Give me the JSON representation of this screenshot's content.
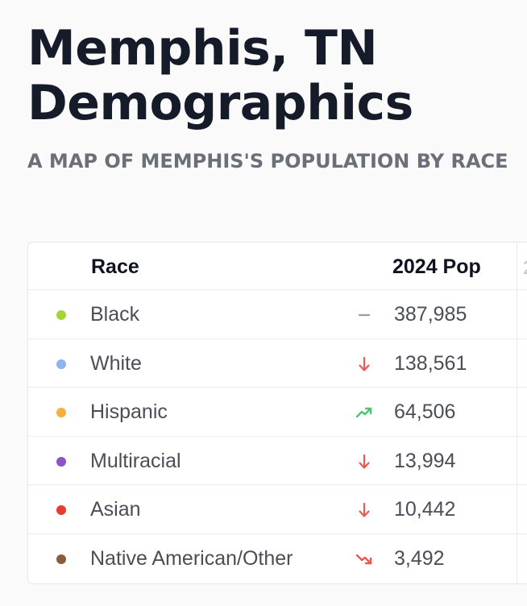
{
  "header": {
    "title": "Memphis, TN Demographics",
    "subtitle": "A map of Memphis's population by race"
  },
  "table": {
    "columns": {
      "race": "Race",
      "pop": "2024 Pop"
    },
    "rows": [
      {
        "race": "Black",
        "pop": "387,985",
        "dot_color": "#a3d43a",
        "trend": "flat"
      },
      {
        "race": "White",
        "pop": "138,561",
        "dot_color": "#8db3f0",
        "trend": "down"
      },
      {
        "race": "Hispanic",
        "pop": "64,506",
        "dot_color": "#f2b23c",
        "trend": "up-strong"
      },
      {
        "race": "Multiracial",
        "pop": "13,994",
        "dot_color": "#8c55c4",
        "trend": "down"
      },
      {
        "race": "Asian",
        "pop": "10,442",
        "dot_color": "#e63b2e",
        "trend": "down"
      },
      {
        "race": "Native American/Other",
        "pop": "3,492",
        "dot_color": "#8a5e3c",
        "trend": "down-strong"
      }
    ]
  },
  "colors": {
    "trend_up": "#4cc66d",
    "trend_down": "#ea5a51",
    "trend_flat": "#9a9ca2"
  }
}
